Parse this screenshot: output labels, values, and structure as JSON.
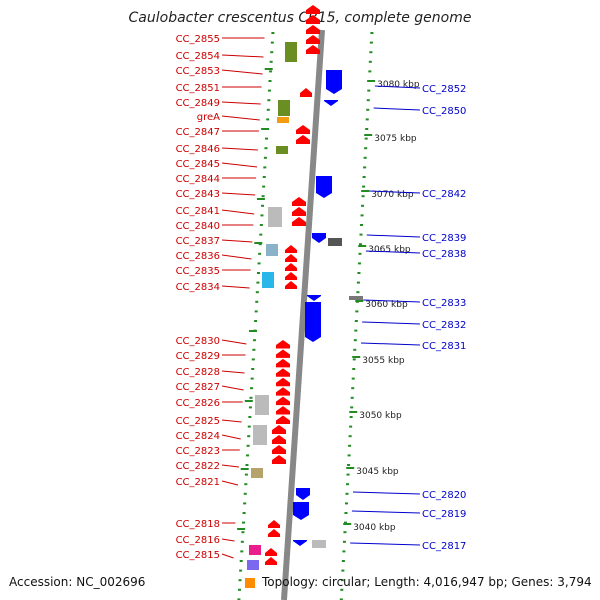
{
  "title": "Caulobacter crescentus CB15, complete genome",
  "accession": "Accession: NC_002696",
  "topology": "Topology: circular; Length: 4,016,947 bp; Genes: 3,794",
  "kbp_ticks": [
    "3080 kbp",
    "3075 kbp",
    "3070 kbp",
    "3065 kbp",
    "3060 kbp",
    "3055 kbp",
    "3050 kbp",
    "3045 kbp",
    "3040 kbp"
  ],
  "left_genes": [
    "CC_2855",
    "CC_2854",
    "CC_2853",
    "CC_2851",
    "CC_2849",
    "greA",
    "CC_2847",
    "CC_2846",
    "CC_2845",
    "CC_2844",
    "CC_2843",
    "CC_2841",
    "CC_2840",
    "CC_2837",
    "CC_2836",
    "CC_2835",
    "CC_2834",
    "CC_2830",
    "CC_2829",
    "CC_2828",
    "CC_2827",
    "CC_2826",
    "CC_2825",
    "CC_2824",
    "CC_2823",
    "CC_2822",
    "CC_2821",
    "CC_2818",
    "CC_2816",
    "CC_2815"
  ],
  "right_genes": [
    "CC_2852",
    "CC_2850",
    "CC_2842",
    "CC_2839",
    "CC_2838",
    "CC_2833",
    "CC_2832",
    "CC_2831",
    "CC_2820",
    "CC_2819",
    "CC_2817"
  ],
  "colors": {
    "forward": "#ff0000",
    "reverse": "#0000ff",
    "backbone": "#888888",
    "ticks": "#228b22",
    "left_label": "#cc0000",
    "right_label": "#0000cc"
  }
}
